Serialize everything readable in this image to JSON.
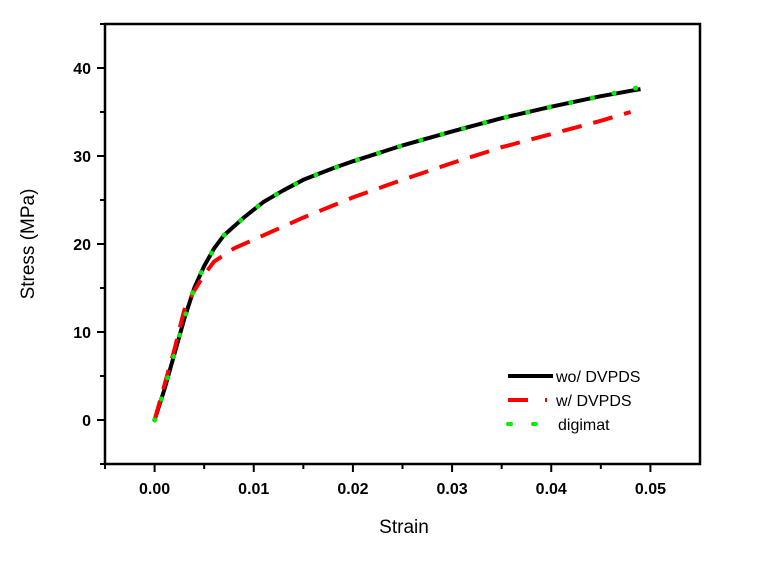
{
  "chart_data": {
    "type": "line",
    "title": "",
    "xlabel": "Strain",
    "ylabel": "Stress (MPa)",
    "xlim": [
      -0.005,
      0.055
    ],
    "ylim": [
      -5,
      45
    ],
    "xticks": [
      0.0,
      0.01,
      0.02,
      0.03,
      0.04,
      0.05
    ],
    "xtick_labels": [
      "0.00",
      "0.01",
      "0.02",
      "0.03",
      "0.04",
      "0.05"
    ],
    "yticks": [
      0,
      10,
      20,
      30,
      40
    ],
    "ytick_labels": [
      "0",
      "10",
      "20",
      "30",
      "40"
    ],
    "grid": false,
    "legend_position": "bottom-right",
    "series": [
      {
        "name": "wo/ DVPDS",
        "color": "#000000",
        "style": "solid",
        "x": [
          0,
          0.001,
          0.002,
          0.003,
          0.004,
          0.005,
          0.006,
          0.007,
          0.009,
          0.011,
          0.013,
          0.015,
          0.018,
          0.02,
          0.025,
          0.03,
          0.035,
          0.04,
          0.045,
          0.049
        ],
        "y": [
          0,
          3.5,
          7.5,
          11.5,
          15,
          17.5,
          19.5,
          21,
          23,
          24.8,
          26.1,
          27.3,
          28.6,
          29.4,
          31.2,
          32.8,
          34.3,
          35.6,
          36.8,
          37.6
        ]
      },
      {
        "name": "w/ DVPDS",
        "color": "#ff0000",
        "style": "dash",
        "x": [
          0,
          0.001,
          0.002,
          0.003,
          0.004,
          0.005,
          0.006,
          0.008,
          0.01,
          0.015,
          0.02,
          0.025,
          0.03,
          0.035,
          0.04,
          0.045,
          0.048
        ],
        "y": [
          0,
          4,
          8,
          12.5,
          14.7,
          16.5,
          18,
          19.5,
          20.5,
          23,
          25.3,
          27.3,
          29.2,
          31,
          32.5,
          34,
          35
        ]
      },
      {
        "name": "digimat",
        "color": "#00ee00",
        "style": "dot",
        "x": [
          0,
          0.001,
          0.002,
          0.003,
          0.004,
          0.005,
          0.006,
          0.007,
          0.009,
          0.011,
          0.013,
          0.015,
          0.018,
          0.02,
          0.025,
          0.03,
          0.035,
          0.04,
          0.045,
          0.05
        ],
        "y": [
          0,
          3.5,
          7.5,
          11.5,
          15,
          17.5,
          19.5,
          21,
          23,
          24.8,
          26.1,
          27.3,
          28.6,
          29.4,
          31.2,
          32.8,
          34.3,
          35.6,
          36.8,
          38.1
        ]
      }
    ]
  }
}
